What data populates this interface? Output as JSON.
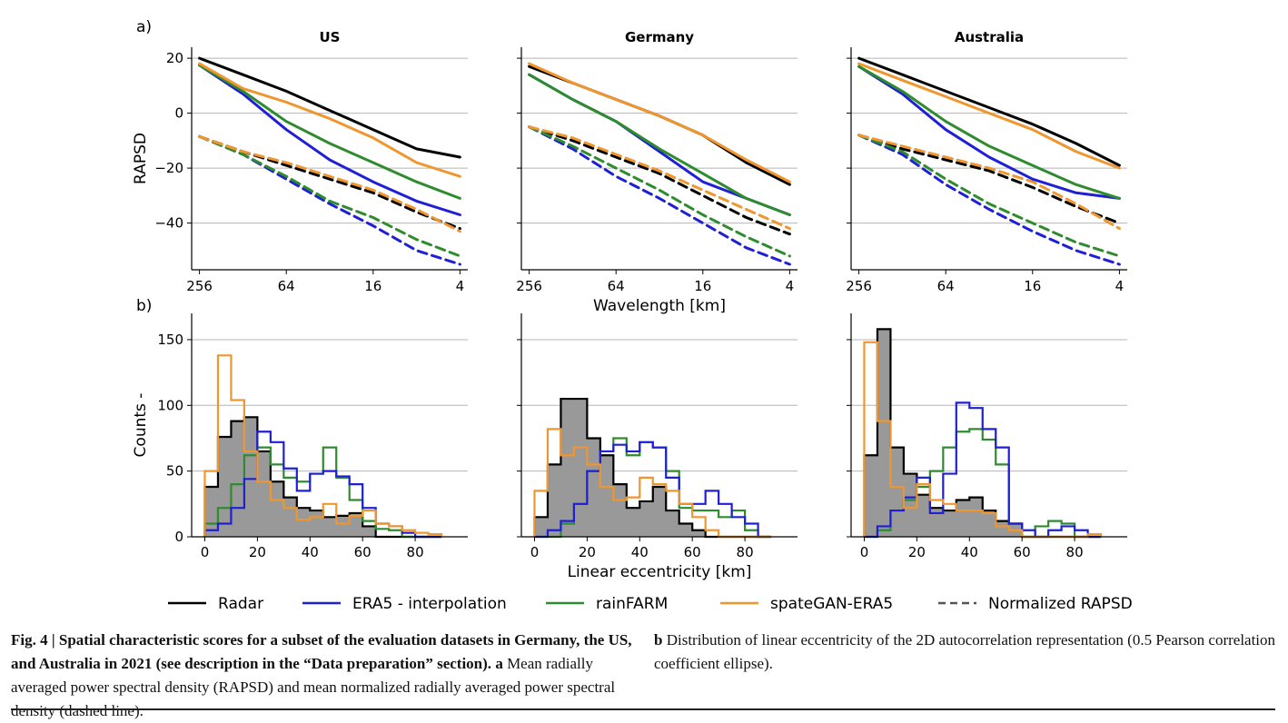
{
  "panel_labels": {
    "a": "a)",
    "b": "b)"
  },
  "legend": {
    "radar": "Radar",
    "era5": "ERA5 - interpolation",
    "rainfarm": "rainFARM",
    "spategan": "spateGAN-ERA5",
    "normalized": "Normalized RAPSD"
  },
  "colors": {
    "radar": "#000000",
    "era5": "#1f1fd6",
    "rainfarm": "#2e8b2e",
    "spategan": "#f0962e",
    "hist_fill": "#999999",
    "grid": "#b5b5b5"
  },
  "caption": {
    "fig_label": "Fig. 4 |",
    "bold_title": "Spatial characteristic scores for a subset of the evaluation datasets in Germany, the US, and Australia in 2021 (see description in the “Data preparation” section).",
    "a_label": "a",
    "a_text": "Mean radially averaged power spectral density (RAPSD) and mean normalized radially averaged power spectral density (dashed line).",
    "b_label": "b",
    "b_text": "Distribution of linear eccentricity of the 2D autocorrelation representation (0.5 Pearson correlation coefficient ellipse)."
  },
  "chart_data": [
    {
      "type": "line",
      "panel": "a",
      "region": "US",
      "title": "US",
      "ylabel": "RAPSD",
      "xlabel": "",
      "x_unit": "km",
      "x_scale": "log2, reversed",
      "xticks": [
        256,
        64,
        16,
        4
      ],
      "yticks": [
        20,
        0,
        -20,
        -40
      ],
      "x": [
        256,
        128,
        64,
        32,
        16,
        8,
        4
      ],
      "xlim": [
        256,
        4
      ],
      "ylim": [
        -57,
        24
      ],
      "grid": "horizontal",
      "series": [
        {
          "name": "Radar",
          "style": "solid",
          "values": [
            20,
            14,
            8,
            1,
            -6,
            -13,
            -16
          ]
        },
        {
          "name": "ERA5 - interpolation",
          "style": "solid",
          "values": [
            17.5,
            7,
            -6,
            -17,
            -25,
            -32,
            -37
          ]
        },
        {
          "name": "rainFARM",
          "style": "solid",
          "values": [
            17.5,
            8,
            -3,
            -11,
            -18,
            -25,
            -31
          ]
        },
        {
          "name": "spateGAN-ERA5",
          "style": "solid",
          "values": [
            18,
            9,
            4,
            -2,
            -9,
            -18,
            -23
          ]
        },
        {
          "name": "Radar",
          "style": "dashed",
          "values": [
            -8.5,
            -14,
            -19,
            -24,
            -29,
            -36,
            -42
          ]
        },
        {
          "name": "ERA5 - interpolation",
          "style": "dashed",
          "values": [
            -8.5,
            -15,
            -24,
            -33,
            -41,
            -50,
            -55
          ]
        },
        {
          "name": "rainFARM",
          "style": "dashed",
          "values": [
            -8.5,
            -15,
            -23,
            -32,
            -38,
            -46,
            -52
          ]
        },
        {
          "name": "spateGAN-ERA5",
          "style": "dashed",
          "values": [
            -8.5,
            -14,
            -18,
            -23,
            -28,
            -35,
            -43
          ]
        }
      ]
    },
    {
      "type": "line",
      "panel": "a",
      "region": "Germany",
      "title": "Germany",
      "xlabel": "Wavelength [km]",
      "x_scale": "log2, reversed",
      "xticks": [
        256,
        64,
        16,
        4
      ],
      "x": [
        256,
        128,
        64,
        32,
        16,
        8,
        4
      ],
      "xlim": [
        256,
        4
      ],
      "ylim": [
        -57,
        24
      ],
      "grid": "horizontal",
      "series": [
        {
          "name": "Radar",
          "style": "solid",
          "values": [
            17,
            11,
            5,
            -1,
            -8,
            -18,
            -26
          ]
        },
        {
          "name": "ERA5 - interpolation",
          "style": "solid",
          "values": [
            14,
            5,
            -3,
            -14,
            -25,
            -31,
            -37
          ]
        },
        {
          "name": "rainFARM",
          "style": "solid",
          "values": [
            14,
            5,
            -3,
            -13,
            -22,
            -31,
            -37
          ]
        },
        {
          "name": "spateGAN-ERA5",
          "style": "solid",
          "values": [
            18,
            11,
            5,
            -1,
            -8,
            -17,
            -25
          ]
        },
        {
          "name": "Radar",
          "style": "dashed",
          "values": [
            -5,
            -10,
            -16,
            -22,
            -30,
            -38,
            -44
          ]
        },
        {
          "name": "ERA5 - interpolation",
          "style": "dashed",
          "values": [
            -5,
            -13,
            -23,
            -31,
            -40,
            -49,
            -55
          ]
        },
        {
          "name": "rainFARM",
          "style": "dashed",
          "values": [
            -5,
            -12,
            -20,
            -28,
            -37,
            -45,
            -52
          ]
        },
        {
          "name": "spateGAN-ERA5",
          "style": "dashed",
          "values": [
            -5,
            -9,
            -15,
            -21,
            -28,
            -35,
            -42
          ]
        }
      ]
    },
    {
      "type": "line",
      "panel": "a",
      "region": "Australia",
      "title": "Australia",
      "xlabel": "",
      "x_scale": "log2, reversed",
      "xticks": [
        256,
        64,
        16,
        4
      ],
      "x": [
        256,
        128,
        64,
        32,
        16,
        8,
        4
      ],
      "xlim": [
        256,
        4
      ],
      "ylim": [
        -57,
        24
      ],
      "grid": "horizontal",
      "series": [
        {
          "name": "Radar",
          "style": "solid",
          "values": [
            20,
            14,
            8,
            2,
            -4,
            -11,
            -19
          ]
        },
        {
          "name": "ERA5 - interpolation",
          "style": "solid",
          "values": [
            17,
            7,
            -6,
            -16,
            -24,
            -29,
            -31
          ]
        },
        {
          "name": "rainFARM",
          "style": "solid",
          "values": [
            17,
            8,
            -3,
            -12,
            -19,
            -26,
            -31
          ]
        },
        {
          "name": "spateGAN-ERA5",
          "style": "solid",
          "values": [
            18,
            12,
            6,
            0,
            -6,
            -14,
            -20
          ]
        },
        {
          "name": "Radar",
          "style": "dashed",
          "values": [
            -8,
            -13,
            -17,
            -21,
            -27,
            -34,
            -40
          ]
        },
        {
          "name": "ERA5 - interpolation",
          "style": "dashed",
          "values": [
            -8,
            -15,
            -26,
            -35,
            -43,
            -50,
            -55
          ]
        },
        {
          "name": "rainFARM",
          "style": "dashed",
          "values": [
            -8,
            -14,
            -24,
            -33,
            -40,
            -47,
            -52
          ]
        },
        {
          "name": "spateGAN-ERA5",
          "style": "dashed",
          "values": [
            -8,
            -12,
            -16,
            -20,
            -25,
            -33,
            -42
          ]
        }
      ]
    },
    {
      "type": "histogram",
      "panel": "b",
      "region": "US",
      "ylabel": "Counts -",
      "xlabel": "",
      "bin_edges": [
        0,
        5,
        10,
        15,
        20,
        25,
        30,
        35,
        40,
        45,
        50,
        55,
        60,
        65,
        70,
        75,
        80,
        85,
        90
      ],
      "xticks": [
        0,
        20,
        40,
        60,
        80
      ],
      "yticks": [
        0,
        50,
        100,
        150
      ],
      "xlim": [
        -5,
        100
      ],
      "ylim": [
        0,
        170
      ],
      "grid": "horizontal",
      "series": [
        {
          "name": "Radar",
          "counts": [
            38,
            76,
            88,
            91,
            65,
            42,
            30,
            22,
            20,
            15,
            16,
            18,
            8,
            0,
            0,
            0,
            0,
            0
          ]
        },
        {
          "name": "ERA5 - interpolation",
          "counts": [
            5,
            10,
            22,
            44,
            80,
            72,
            52,
            35,
            48,
            50,
            46,
            40,
            22,
            10,
            8,
            3,
            0,
            0
          ]
        },
        {
          "name": "rainFARM",
          "counts": [
            10,
            22,
            40,
            62,
            68,
            55,
            45,
            42,
            48,
            68,
            45,
            28,
            12,
            6,
            5,
            0,
            0,
            0
          ]
        },
        {
          "name": "spateGAN-ERA5",
          "counts": [
            50,
            138,
            104,
            65,
            42,
            28,
            22,
            13,
            15,
            25,
            10,
            16,
            20,
            10,
            8,
            5,
            3,
            2
          ]
        }
      ]
    },
    {
      "type": "histogram",
      "panel": "b",
      "region": "Germany",
      "xlabel": "Linear eccentricity [km]",
      "bin_edges": [
        0,
        5,
        10,
        15,
        20,
        25,
        30,
        35,
        40,
        45,
        50,
        55,
        60,
        65,
        70,
        75,
        80,
        85,
        90
      ],
      "xticks": [
        0,
        20,
        40,
        60,
        80
      ],
      "xlim": [
        -5,
        100
      ],
      "ylim": [
        0,
        170
      ],
      "grid": "horizontal",
      "series": [
        {
          "name": "Radar",
          "counts": [
            15,
            55,
            105,
            105,
            75,
            62,
            40,
            22,
            27,
            38,
            20,
            10,
            5,
            0,
            0,
            0,
            0,
            0
          ]
        },
        {
          "name": "ERA5 - interpolation",
          "counts": [
            0,
            5,
            12,
            25,
            50,
            65,
            70,
            65,
            72,
            68,
            45,
            25,
            25,
            35,
            25,
            15,
            10,
            0
          ]
        },
        {
          "name": "rainFARM",
          "counts": [
            0,
            0,
            10,
            25,
            50,
            65,
            75,
            62,
            72,
            68,
            50,
            22,
            20,
            20,
            15,
            20,
            5,
            0
          ]
        },
        {
          "name": "spateGAN-ERA5",
          "counts": [
            35,
            82,
            62,
            68,
            55,
            38,
            28,
            30,
            45,
            40,
            35,
            25,
            15,
            5,
            0,
            0,
            0,
            0
          ]
        }
      ]
    },
    {
      "type": "histogram",
      "panel": "b",
      "region": "Australia",
      "xlabel": "",
      "bin_edges": [
        0,
        5,
        10,
        15,
        20,
        25,
        30,
        35,
        40,
        45,
        50,
        55,
        60,
        65,
        70,
        75,
        80,
        85,
        90
      ],
      "xticks": [
        0,
        20,
        40,
        60,
        80
      ],
      "xlim": [
        -5,
        100
      ],
      "ylim": [
        0,
        170
      ],
      "grid": "horizontal",
      "series": [
        {
          "name": "Radar",
          "counts": [
            62,
            158,
            68,
            48,
            32,
            22,
            20,
            28,
            30,
            20,
            12,
            10,
            0,
            0,
            0,
            0,
            0,
            0
          ]
        },
        {
          "name": "ERA5 - interpolation",
          "counts": [
            0,
            8,
            20,
            30,
            45,
            18,
            48,
            102,
            98,
            82,
            68,
            10,
            5,
            0,
            5,
            8,
            5,
            0
          ]
        },
        {
          "name": "rainFARM",
          "counts": [
            0,
            5,
            20,
            28,
            38,
            50,
            68,
            80,
            82,
            74,
            55,
            10,
            0,
            8,
            12,
            10,
            0,
            0
          ]
        },
        {
          "name": "spateGAN-ERA5",
          "counts": [
            148,
            88,
            38,
            22,
            40,
            28,
            25,
            20,
            20,
            18,
            8,
            5,
            0,
            0,
            0,
            0,
            0,
            2
          ]
        }
      ]
    }
  ]
}
